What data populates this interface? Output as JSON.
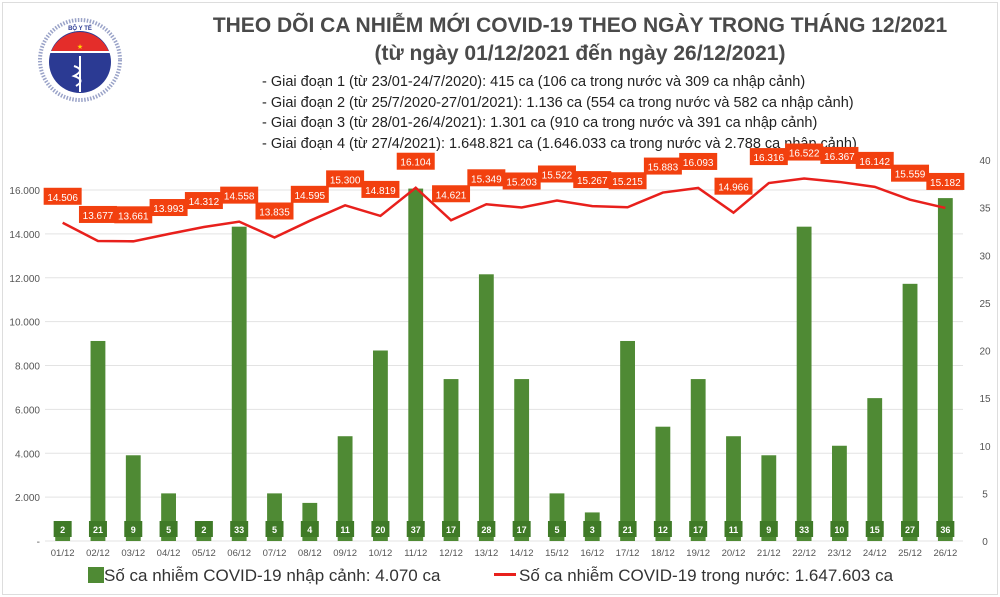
{
  "header": {
    "logo_text": "BỘ Y TẾ - MINISTRY OF HEALTH",
    "title": "THEO DÕI CA NHIỄM MỚI COVID-19 THEO NGÀY TRONG THÁNG 12/2021",
    "subtitle": "(từ ngày 01/12/2021 đến ngày 26/12/2021)",
    "phases": [
      "- Giai đoạn 1 (từ 23/01-24/7/2020): 415 ca (106 ca trong nước và 309 ca nhập cảnh)",
      "- Giai đoạn 2 (từ 25/7/2020-27/01/2021): 1.136 ca (554 ca trong nước và 582 ca nhập cảnh)",
      "- Giai đoạn 3 (từ 28/01-26/4/2021): 1.301 ca (910 ca trong nước và 391 ca nhập cảnh)",
      "- Giai đoạn 4 (từ 27/4/2021): 1.648.821 ca (1.646.033 ca trong nước và 2.788 ca nhập cảnh)"
    ]
  },
  "chart_data": {
    "type": "bar+line",
    "categories": [
      "01/12",
      "02/12",
      "03/12",
      "04/12",
      "05/12",
      "06/12",
      "07/12",
      "08/12",
      "09/12",
      "10/12",
      "11/12",
      "12/12",
      "13/12",
      "14/12",
      "15/12",
      "16/12",
      "17/12",
      "18/12",
      "19/12",
      "20/12",
      "21/12",
      "22/12",
      "23/12",
      "24/12",
      "25/12",
      "26/12"
    ],
    "series": [
      {
        "name": "Số ca nhiễm COVID-19 nhập cảnh: 4.070 ca",
        "type": "bar",
        "axis": "right",
        "color": "#4f8a34",
        "values": [
          2,
          21,
          9,
          5,
          2,
          33,
          5,
          4,
          11,
          20,
          37,
          17,
          28,
          17,
          5,
          3,
          21,
          12,
          17,
          11,
          9,
          33,
          10,
          15,
          27,
          36
        ],
        "labels": [
          "2",
          "21",
          "9",
          "5",
          "2",
          "33",
          "5",
          "4",
          "11",
          "20",
          "37",
          "17",
          "28",
          "17",
          "5",
          "3",
          "21",
          "12",
          "17",
          "11",
          "9",
          "33",
          "10",
          "15",
          "27",
          "36"
        ]
      },
      {
        "name": "Số ca nhiễm COVID-19 trong nước: 1.647.603 ca",
        "type": "line",
        "axis": "left",
        "color": "#e8201c",
        "values": [
          14506,
          13677,
          13661,
          13993,
          14312,
          14558,
          13835,
          14595,
          15300,
          14819,
          16104,
          14621,
          15349,
          15203,
          15522,
          15267,
          15215,
          15883,
          16093,
          14966,
          16316,
          16522,
          16367,
          16142,
          15559,
          15182
        ],
        "labels": [
          "14.506",
          "13.677",
          "13.661",
          "13.993",
          "14.312",
          "14.558",
          "13.835",
          "14.595",
          "15.300",
          "14.819",
          "16.104",
          "14.621",
          "15.349",
          "15.203",
          "15.522",
          "15.267",
          "15.215",
          "15.883",
          "16.093",
          "14.966",
          "16.316",
          "16.522",
          "16.367",
          "16.142",
          "15.559",
          "15.182"
        ]
      }
    ],
    "left_axis": {
      "ylim": [
        0,
        18000
      ],
      "ticks": [
        0,
        2000,
        4000,
        6000,
        8000,
        10000,
        12000,
        14000,
        16000
      ],
      "tick_labels": [
        "-",
        "2.000",
        "4.000",
        "6.000",
        "8.000",
        "10.000",
        "12.000",
        "14.000",
        "16.000"
      ]
    },
    "right_axis": {
      "ylim": [
        0,
        40
      ],
      "ticks": [
        0,
        5,
        10,
        15,
        20,
        25,
        30,
        35,
        40
      ],
      "tick_labels": [
        "0",
        "5",
        "10",
        "15",
        "20",
        "25",
        "30",
        "35",
        "40"
      ]
    },
    "grid": true,
    "legend": "bottom",
    "label_box_color": "#f2400f"
  }
}
